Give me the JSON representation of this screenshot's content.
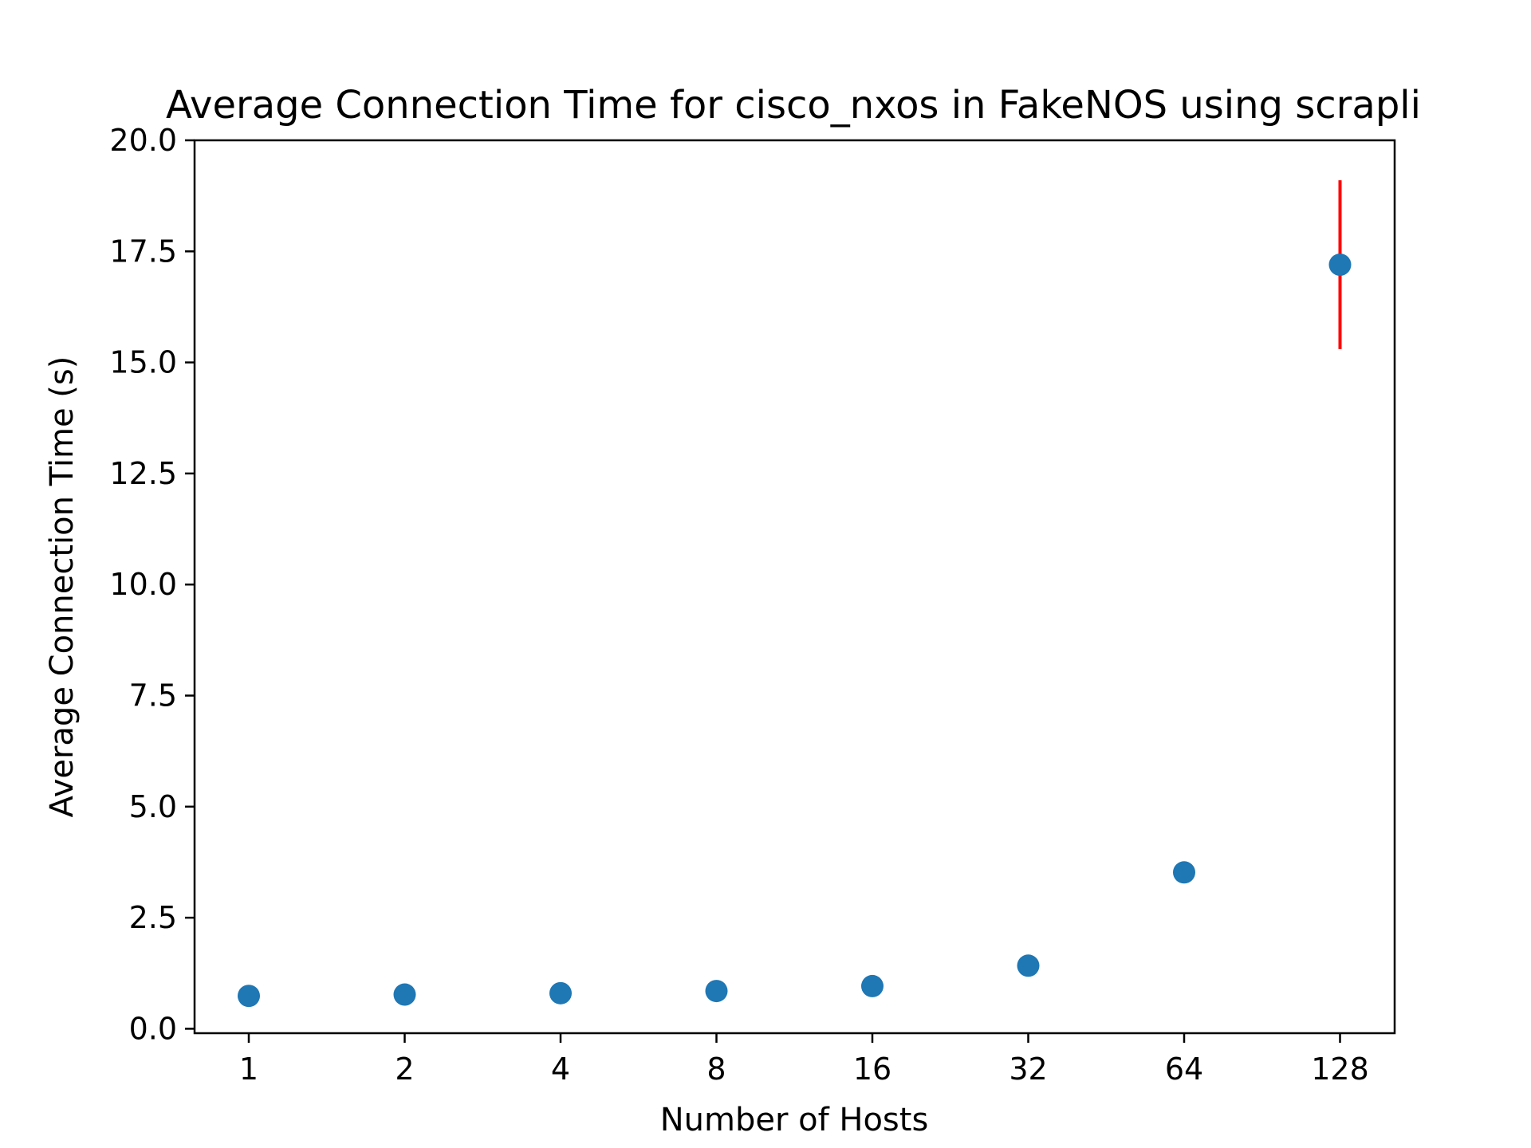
{
  "chart_data": {
    "type": "scatter",
    "title": "Average Connection Time for cisco_nxos in FakeNOS using scrapli",
    "xlabel": "Number of Hosts",
    "ylabel": "Average Connection Time (s)",
    "x_scale": "log2",
    "x": [
      1,
      2,
      4,
      8,
      16,
      32,
      64,
      128
    ],
    "x_tick_labels": [
      "1",
      "2",
      "4",
      "8",
      "16",
      "32",
      "64",
      "128"
    ],
    "y_ticks": [
      0.0,
      2.5,
      5.0,
      7.5,
      10.0,
      12.5,
      15.0,
      17.5,
      20.0
    ],
    "y_tick_labels": [
      "0.0",
      "2.5",
      "5.0",
      "7.5",
      "10.0",
      "12.5",
      "15.0",
      "17.5",
      "20.0"
    ],
    "ylim": [
      -0.1,
      20.0
    ],
    "grid": false,
    "series": [
      {
        "values": [
          0.74,
          0.77,
          0.8,
          0.85,
          0.96,
          1.42,
          3.52,
          17.2
        ],
        "error_low": [
          null,
          null,
          null,
          null,
          null,
          null,
          null,
          15.3
        ],
        "error_high": [
          null,
          null,
          null,
          null,
          null,
          null,
          null,
          19.1
        ],
        "color": "#1f77b4",
        "error_color": "#ff0000"
      }
    ]
  }
}
